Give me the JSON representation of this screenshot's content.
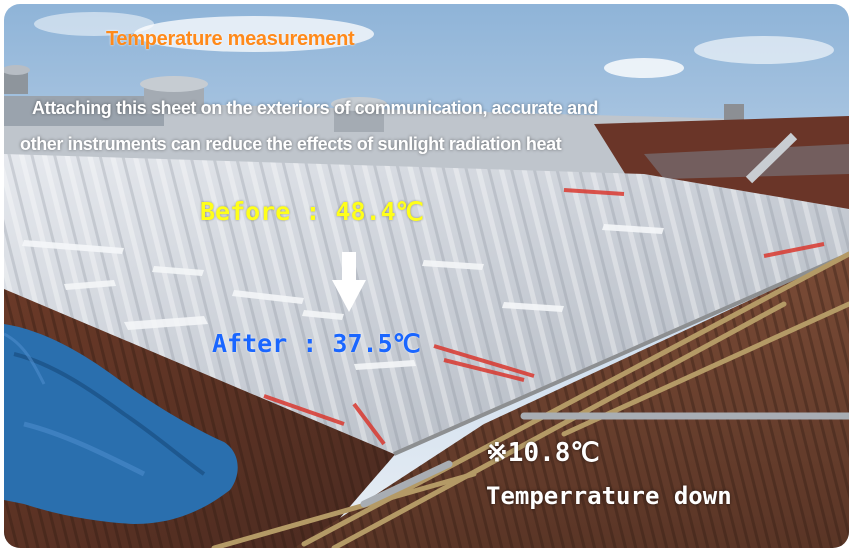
{
  "title": "Temperature measurement",
  "description": {
    "line1": "Attaching this sheet on the exteriors of communication, accurate and",
    "line2": "other instruments can reduce the effects of sunlight radiation heat"
  },
  "before": "Before : 48.4℃",
  "after": "After : 37.5℃",
  "difference": "※10.8℃",
  "difference_label": "Temperrature down",
  "colors": {
    "title": "#ff8a1a",
    "before": "#ffff1a",
    "after": "#1a66ff",
    "text": "#ffffff"
  }
}
